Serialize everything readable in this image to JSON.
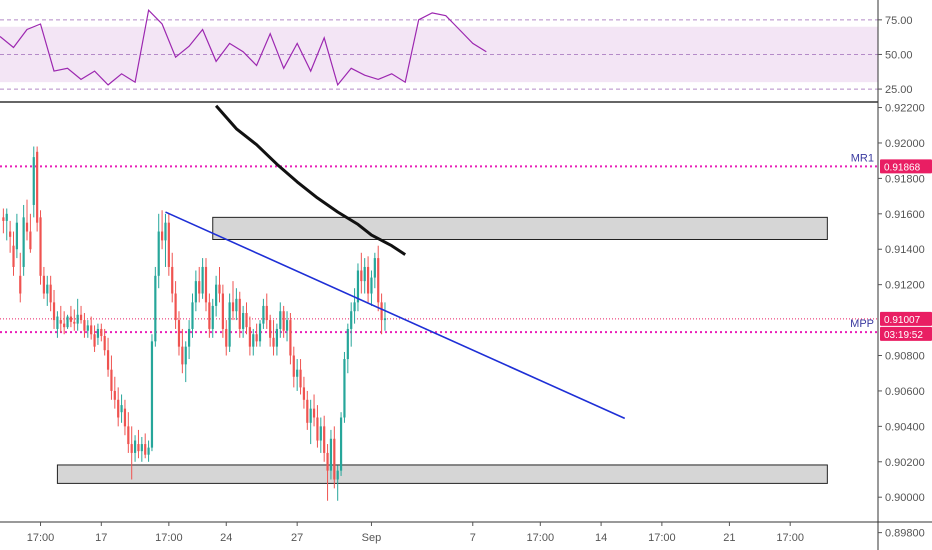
{
  "colors": {
    "up": "#26a69a",
    "down": "#ef5350",
    "rsi_line": "#9c27b0",
    "rsi_band": "#f3e5f5",
    "pivot": "#e91eb8",
    "trendline": "#1e2fd6",
    "ma_line": "#111111",
    "zone_fill": "#c8c8c8",
    "price_badge": "#e91e63"
  },
  "chart_data": [
    {
      "type": "line",
      "name": "rsi-pane",
      "ylim": [
        20,
        85
      ],
      "y_ticks": [
        "75.00",
        "50.00",
        "25.00"
      ],
      "y_tick_values": [
        75,
        50,
        25
      ],
      "band": [
        30,
        70
      ],
      "x_index": [
        0,
        4,
        8,
        12,
        16,
        20,
        24,
        28,
        32,
        36,
        40,
        44,
        48,
        52,
        56,
        60,
        64,
        68,
        72,
        76,
        80,
        84,
        88,
        92,
        96,
        100,
        104,
        108,
        112,
        116,
        120,
        124,
        128,
        132,
        136,
        140,
        144
      ],
      "values": [
        63,
        55,
        68,
        72,
        38,
        40,
        32,
        38,
        28,
        36,
        30,
        82,
        72,
        48,
        56,
        68,
        45,
        58,
        52,
        42,
        65,
        40,
        58,
        38,
        62,
        28,
        40,
        35,
        32,
        36,
        30,
        75,
        80,
        78,
        68,
        58,
        52
      ]
    },
    {
      "type": "candlestick",
      "name": "price-pane",
      "ylim": [
        0.8986,
        0.9222
      ],
      "y_ticks": [
        "0.92200",
        "0.92000",
        "0.91800",
        "0.91600",
        "0.91400",
        "0.91200",
        "0.90800",
        "0.90600",
        "0.90400",
        "0.90200",
        "0.90000",
        "0.89800"
      ],
      "y_tick_values": [
        0.922,
        0.92,
        0.918,
        0.916,
        0.914,
        0.912,
        0.908,
        0.906,
        0.904,
        0.902,
        0.9,
        0.898
      ],
      "x_tick_labels": [
        "17:00",
        "17",
        "17:00",
        "24",
        "27",
        "Sep",
        "7",
        "17:00",
        "14",
        "17:00",
        "21",
        "17:00"
      ],
      "x_tick_index": [
        12,
        30,
        50,
        67,
        88,
        110,
        140,
        160,
        178,
        196,
        216,
        234
      ],
      "x_range": [
        0,
        260
      ],
      "candles": [
        {
          "o": 0.9158,
          "h": 0.9163,
          "l": 0.9149,
          "c": 0.9156
        },
        {
          "o": 0.9156,
          "h": 0.9163,
          "l": 0.9145,
          "c": 0.916
        },
        {
          "o": 0.915,
          "h": 0.9156,
          "l": 0.9138,
          "c": 0.9147
        },
        {
          "o": 0.9142,
          "h": 0.915,
          "l": 0.9125,
          "c": 0.913
        },
        {
          "o": 0.914,
          "h": 0.916,
          "l": 0.9135,
          "c": 0.9155
        },
        {
          "o": 0.9125,
          "h": 0.9138,
          "l": 0.911,
          "c": 0.9115
        },
        {
          "o": 0.913,
          "h": 0.9165,
          "l": 0.9125,
          "c": 0.9158
        },
        {
          "o": 0.9155,
          "h": 0.9168,
          "l": 0.9145,
          "c": 0.915
        },
        {
          "o": 0.915,
          "h": 0.916,
          "l": 0.9138,
          "c": 0.914
        },
        {
          "o": 0.9165,
          "h": 0.9198,
          "l": 0.9158,
          "c": 0.9192
        },
        {
          "o": 0.9195,
          "h": 0.9198,
          "l": 0.915,
          "c": 0.9155
        },
        {
          "o": 0.9158,
          "h": 0.9162,
          "l": 0.912,
          "c": 0.9125
        },
        {
          "o": 0.9125,
          "h": 0.913,
          "l": 0.9112,
          "c": 0.9115
        },
        {
          "o": 0.9115,
          "h": 0.9125,
          "l": 0.9108,
          "c": 0.912
        },
        {
          "o": 0.912,
          "h": 0.9125,
          "l": 0.9105,
          "c": 0.911
        },
        {
          "o": 0.911,
          "h": 0.9117,
          "l": 0.9095,
          "c": 0.91
        },
        {
          "o": 0.9095,
          "h": 0.9105,
          "l": 0.909,
          "c": 0.9102
        },
        {
          "o": 0.91,
          "h": 0.9108,
          "l": 0.9093,
          "c": 0.9098
        },
        {
          "o": 0.9098,
          "h": 0.9105,
          "l": 0.9092,
          "c": 0.9096
        },
        {
          "o": 0.9096,
          "h": 0.9103,
          "l": 0.9095,
          "c": 0.9102
        },
        {
          "o": 0.9102,
          "h": 0.9108,
          "l": 0.9096,
          "c": 0.9099
        },
        {
          "o": 0.9099,
          "h": 0.9106,
          "l": 0.9094,
          "c": 0.9098
        },
        {
          "o": 0.9098,
          "h": 0.9112,
          "l": 0.9094,
          "c": 0.9103
        },
        {
          "o": 0.9103,
          "h": 0.9108,
          "l": 0.9098,
          "c": 0.91
        },
        {
          "o": 0.91,
          "h": 0.9104,
          "l": 0.909,
          "c": 0.9094
        },
        {
          "o": 0.9094,
          "h": 0.91,
          "l": 0.909,
          "c": 0.9097
        },
        {
          "o": 0.9097,
          "h": 0.9102,
          "l": 0.9089,
          "c": 0.9092
        },
        {
          "o": 0.9092,
          "h": 0.9097,
          "l": 0.9082,
          "c": 0.9085
        },
        {
          "o": 0.909,
          "h": 0.9098,
          "l": 0.9086,
          "c": 0.9095
        },
        {
          "o": 0.9095,
          "h": 0.9098,
          "l": 0.9088,
          "c": 0.9091
        },
        {
          "o": 0.9091,
          "h": 0.9095,
          "l": 0.908,
          "c": 0.9083
        },
        {
          "o": 0.9083,
          "h": 0.909,
          "l": 0.9068,
          "c": 0.9072
        },
        {
          "o": 0.9072,
          "h": 0.908,
          "l": 0.9055,
          "c": 0.906
        },
        {
          "o": 0.906,
          "h": 0.9068,
          "l": 0.905,
          "c": 0.9055
        },
        {
          "o": 0.9055,
          "h": 0.9062,
          "l": 0.904,
          "c": 0.9045
        },
        {
          "o": 0.9048,
          "h": 0.9058,
          "l": 0.9042,
          "c": 0.9052
        },
        {
          "o": 0.905,
          "h": 0.9055,
          "l": 0.9035,
          "c": 0.904
        },
        {
          "o": 0.904,
          "h": 0.9048,
          "l": 0.9025,
          "c": 0.903
        },
        {
          "o": 0.903,
          "h": 0.904,
          "l": 0.901,
          "c": 0.9025
        },
        {
          "o": 0.9025,
          "h": 0.9035,
          "l": 0.902,
          "c": 0.9032
        },
        {
          "o": 0.903,
          "h": 0.9038,
          "l": 0.9022,
          "c": 0.9026
        },
        {
          "o": 0.9026,
          "h": 0.9034,
          "l": 0.902,
          "c": 0.903
        },
        {
          "o": 0.903,
          "h": 0.9036,
          "l": 0.9022,
          "c": 0.9024
        },
        {
          "o": 0.9024,
          "h": 0.9032,
          "l": 0.902,
          "c": 0.9028
        },
        {
          "o": 0.9028,
          "h": 0.9092,
          "l": 0.9026,
          "c": 0.9088
        },
        {
          "o": 0.9088,
          "h": 0.913,
          "l": 0.9085,
          "c": 0.9125
        },
        {
          "o": 0.9125,
          "h": 0.916,
          "l": 0.9118,
          "c": 0.915
        },
        {
          "o": 0.915,
          "h": 0.9162,
          "l": 0.914,
          "c": 0.9145
        },
        {
          "o": 0.9145,
          "h": 0.916,
          "l": 0.913,
          "c": 0.9155
        },
        {
          "o": 0.9155,
          "h": 0.916,
          "l": 0.9125,
          "c": 0.913
        },
        {
          "o": 0.913,
          "h": 0.9138,
          "l": 0.911,
          "c": 0.9115
        },
        {
          "o": 0.9115,
          "h": 0.9122,
          "l": 0.9095,
          "c": 0.91
        },
        {
          "o": 0.91,
          "h": 0.9105,
          "l": 0.908,
          "c": 0.9085
        },
        {
          "o": 0.9085,
          "h": 0.9095,
          "l": 0.907,
          "c": 0.9075
        },
        {
          "o": 0.9075,
          "h": 0.9088,
          "l": 0.9065,
          "c": 0.9085
        },
        {
          "o": 0.9085,
          "h": 0.91,
          "l": 0.9078,
          "c": 0.9095
        },
        {
          "o": 0.9095,
          "h": 0.9115,
          "l": 0.909,
          "c": 0.911
        },
        {
          "o": 0.911,
          "h": 0.9128,
          "l": 0.9105,
          "c": 0.9122
        },
        {
          "o": 0.9122,
          "h": 0.913,
          "l": 0.911,
          "c": 0.9115
        },
        {
          "o": 0.9115,
          "h": 0.9135,
          "l": 0.9112,
          "c": 0.913
        },
        {
          "o": 0.913,
          "h": 0.9135,
          "l": 0.9105,
          "c": 0.911
        },
        {
          "o": 0.911,
          "h": 0.9115,
          "l": 0.909,
          "c": 0.9095
        },
        {
          "o": 0.9095,
          "h": 0.9112,
          "l": 0.909,
          "c": 0.9108
        },
        {
          "o": 0.9108,
          "h": 0.9125,
          "l": 0.9102,
          "c": 0.912
        },
        {
          "o": 0.912,
          "h": 0.913,
          "l": 0.911,
          "c": 0.9115
        },
        {
          "o": 0.9115,
          "h": 0.912,
          "l": 0.909,
          "c": 0.9095
        },
        {
          "o": 0.9095,
          "h": 0.91,
          "l": 0.908,
          "c": 0.9085
        },
        {
          "o": 0.9085,
          "h": 0.9115,
          "l": 0.9082,
          "c": 0.911
        },
        {
          "o": 0.911,
          "h": 0.9122,
          "l": 0.91,
          "c": 0.9105
        },
        {
          "o": 0.9105,
          "h": 0.9118,
          "l": 0.91,
          "c": 0.9112
        },
        {
          "o": 0.9112,
          "h": 0.9116,
          "l": 0.909,
          "c": 0.9095
        },
        {
          "o": 0.9095,
          "h": 0.9108,
          "l": 0.909,
          "c": 0.9104
        },
        {
          "o": 0.9104,
          "h": 0.911,
          "l": 0.9092,
          "c": 0.9096
        },
        {
          "o": 0.9096,
          "h": 0.9102,
          "l": 0.908,
          "c": 0.9085
        },
        {
          "o": 0.9085,
          "h": 0.9095,
          "l": 0.908,
          "c": 0.9092
        },
        {
          "o": 0.9092,
          "h": 0.9098,
          "l": 0.9085,
          "c": 0.9088
        },
        {
          "o": 0.9088,
          "h": 0.91,
          "l": 0.9085,
          "c": 0.9098
        },
        {
          "o": 0.9098,
          "h": 0.9112,
          "l": 0.9095,
          "c": 0.9108
        },
        {
          "o": 0.9108,
          "h": 0.9115,
          "l": 0.9095,
          "c": 0.91
        },
        {
          "o": 0.91,
          "h": 0.9103,
          "l": 0.9085,
          "c": 0.909
        },
        {
          "o": 0.909,
          "h": 0.91,
          "l": 0.908,
          "c": 0.9085
        },
        {
          "o": 0.9085,
          "h": 0.9098,
          "l": 0.908,
          "c": 0.9095
        },
        {
          "o": 0.9095,
          "h": 0.911,
          "l": 0.909,
          "c": 0.9105
        },
        {
          "o": 0.9105,
          "h": 0.9108,
          "l": 0.909,
          "c": 0.9094
        },
        {
          "o": 0.9094,
          "h": 0.9105,
          "l": 0.9088,
          "c": 0.91
        },
        {
          "o": 0.91,
          "h": 0.9104,
          "l": 0.9075,
          "c": 0.908
        },
        {
          "o": 0.908,
          "h": 0.9085,
          "l": 0.9062,
          "c": 0.9068
        },
        {
          "o": 0.9068,
          "h": 0.9078,
          "l": 0.906,
          "c": 0.9072
        },
        {
          "o": 0.9072,
          "h": 0.9078,
          "l": 0.9058,
          "c": 0.9062
        },
        {
          "o": 0.9062,
          "h": 0.9068,
          "l": 0.905,
          "c": 0.9055
        },
        {
          "o": 0.9055,
          "h": 0.906,
          "l": 0.9038,
          "c": 0.9042
        },
        {
          "o": 0.9042,
          "h": 0.9055,
          "l": 0.903,
          "c": 0.905
        },
        {
          "o": 0.905,
          "h": 0.9058,
          "l": 0.904,
          "c": 0.9045
        },
        {
          "o": 0.9045,
          "h": 0.9052,
          "l": 0.9028,
          "c": 0.9032
        },
        {
          "o": 0.9032,
          "h": 0.9045,
          "l": 0.9025,
          "c": 0.904
        },
        {
          "o": 0.904,
          "h": 0.9046,
          "l": 0.902,
          "c": 0.9025
        },
        {
          "o": 0.9025,
          "h": 0.903,
          "l": 0.8998,
          "c": 0.9015
        },
        {
          "o": 0.9015,
          "h": 0.9038,
          "l": 0.901,
          "c": 0.9033
        },
        {
          "o": 0.9033,
          "h": 0.904,
          "l": 0.9005,
          "c": 0.901
        },
        {
          "o": 0.901,
          "h": 0.9018,
          "l": 0.8998,
          "c": 0.9015
        },
        {
          "o": 0.9015,
          "h": 0.9048,
          "l": 0.9012,
          "c": 0.9045
        },
        {
          "o": 0.9045,
          "h": 0.9082,
          "l": 0.9042,
          "c": 0.9078
        },
        {
          "o": 0.9078,
          "h": 0.9098,
          "l": 0.907,
          "c": 0.9095
        },
        {
          "o": 0.9095,
          "h": 0.911,
          "l": 0.9085,
          "c": 0.9105
        },
        {
          "o": 0.9105,
          "h": 0.9118,
          "l": 0.9098,
          "c": 0.911
        },
        {
          "o": 0.911,
          "h": 0.9132,
          "l": 0.9105,
          "c": 0.9128
        },
        {
          "o": 0.9128,
          "h": 0.9138,
          "l": 0.9115,
          "c": 0.9122
        },
        {
          "o": 0.9122,
          "h": 0.9135,
          "l": 0.9115,
          "c": 0.913
        },
        {
          "o": 0.913,
          "h": 0.9136,
          "l": 0.911,
          "c": 0.9115
        },
        {
          "o": 0.9115,
          "h": 0.9128,
          "l": 0.9108,
          "c": 0.9124
        },
        {
          "o": 0.9124,
          "h": 0.9138,
          "l": 0.9118,
          "c": 0.9135
        },
        {
          "o": 0.9135,
          "h": 0.9142,
          "l": 0.9105,
          "c": 0.911
        },
        {
          "o": 0.911,
          "h": 0.9115,
          "l": 0.9092,
          "c": 0.91
        },
        {
          "o": 0.91,
          "h": 0.911,
          "l": 0.9094,
          "c": 0.9101
        }
      ],
      "levels": [
        {
          "name": "MR1",
          "value": 0.91868
        },
        {
          "name": "MPP",
          "value": 0.90932
        }
      ],
      "zones": [
        {
          "top": 0.9158,
          "bottom": 0.91455,
          "x_start": 63,
          "x_end": 245
        },
        {
          "top": 0.90182,
          "bottom": 0.90078,
          "x_start": 17,
          "x_end": 245
        }
      ],
      "trendline": {
        "x": [
          49,
          185
        ],
        "y": [
          0.9161,
          0.90445
        ]
      },
      "ma_line": {
        "x": [
          64,
          70,
          76,
          82,
          88,
          94,
          100,
          106,
          110,
          116,
          120
        ],
        "y": [
          0.9221,
          0.9208,
          0.9199,
          0.9188,
          0.9178,
          0.9169,
          0.9161,
          0.9154,
          0.9148,
          0.9142,
          0.9137
        ]
      },
      "price_badges": [
        {
          "label": "0.91868"
        },
        {
          "label": "0.91007"
        },
        {
          "label": "03:19:52"
        }
      ],
      "current_price": 0.91007
    }
  ]
}
